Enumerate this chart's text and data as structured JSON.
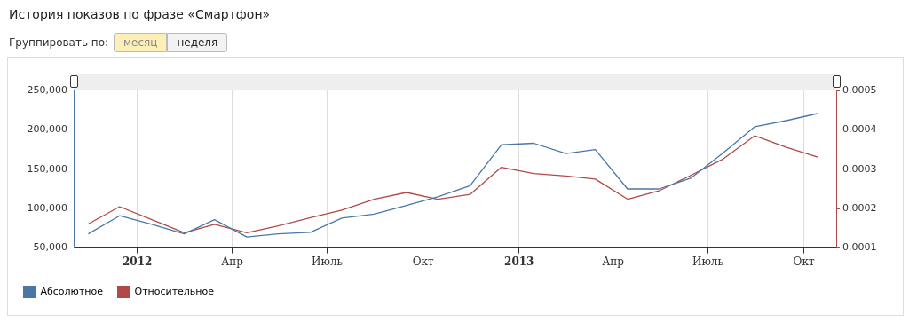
{
  "chart_data": {
    "type": "line",
    "title": "История показов по фразе «Смартфон»",
    "annotations": [
      "Группировать по:",
      "месяц",
      "неделя"
    ],
    "x": [
      "2011-11-15",
      "2011-12-15",
      "2012-01-15",
      "2012-02-15",
      "2012-03-15",
      "2012-04-15",
      "2012-05-15",
      "2012-06-15",
      "2012-07-15",
      "2012-08-15",
      "2012-09-15",
      "2012-10-15",
      "2012-11-15",
      "2012-12-15",
      "2013-01-15",
      "2013-02-15",
      "2013-03-15",
      "2013-04-15",
      "2013-05-15",
      "2013-06-15",
      "2013-07-15",
      "2013-08-15",
      "2013-09-15",
      "2013-10-15"
    ],
    "series": [
      {
        "name": "Абсолютное",
        "color": "#4a77a8",
        "values": [
          68000,
          91000,
          80000,
          68000,
          86000,
          64000,
          68000,
          70000,
          88000,
          93000,
          104000,
          115000,
          129000,
          181000,
          183000,
          170000,
          175000,
          125000,
          125000,
          139000,
          170000,
          204000,
          212000,
          221000
        ]
      },
      {
        "name": "Относительное",
        "color": "#b04a48",
        "axis": "y2",
        "values": [
          0.000161,
          0.000205,
          0.000172,
          0.000139,
          0.00016,
          0.000139,
          0.000156,
          0.000177,
          0.000196,
          0.000224,
          0.000241,
          0.000224,
          0.000236,
          0.000305,
          0.000289,
          0.000283,
          0.000275,
          0.000224,
          0.000245,
          0.000285,
          0.000325,
          0.000385,
          0.000355,
          0.00033
        ]
      }
    ],
    "xlim": [
      "2011-11-01",
      "2013-11-01"
    ],
    "xticks": [
      {
        "value": "2012-01-01",
        "label": "2012"
      },
      {
        "value": "2012-04-01",
        "label": "Апр"
      },
      {
        "value": "2012-07-01",
        "label": "Июль"
      },
      {
        "value": "2012-10-01",
        "label": "Окт"
      },
      {
        "value": "2013-01-01",
        "label": "2013"
      },
      {
        "value": "2013-04-01",
        "label": "Апр"
      },
      {
        "value": "2013-07-01",
        "label": "Июль"
      },
      {
        "value": "2013-10-01",
        "label": "Окт"
      }
    ],
    "ylim": [
      50000,
      250000
    ],
    "yticks": [
      {
        "value": 50000,
        "label": "50,000"
      },
      {
        "value": 100000,
        "label": "100,000"
      },
      {
        "value": 150000,
        "label": "150,000"
      },
      {
        "value": 200000,
        "label": "200,000"
      },
      {
        "value": 250000,
        "label": "250,000"
      }
    ],
    "y2lim": [
      0.0001,
      0.0005
    ],
    "y2ticks": [
      0.0001,
      0.0002,
      0.0003,
      0.0004,
      0.0005
    ],
    "grid": "x",
    "legend": "bottom left",
    "marker": "none",
    "line_style": "solid"
  }
}
